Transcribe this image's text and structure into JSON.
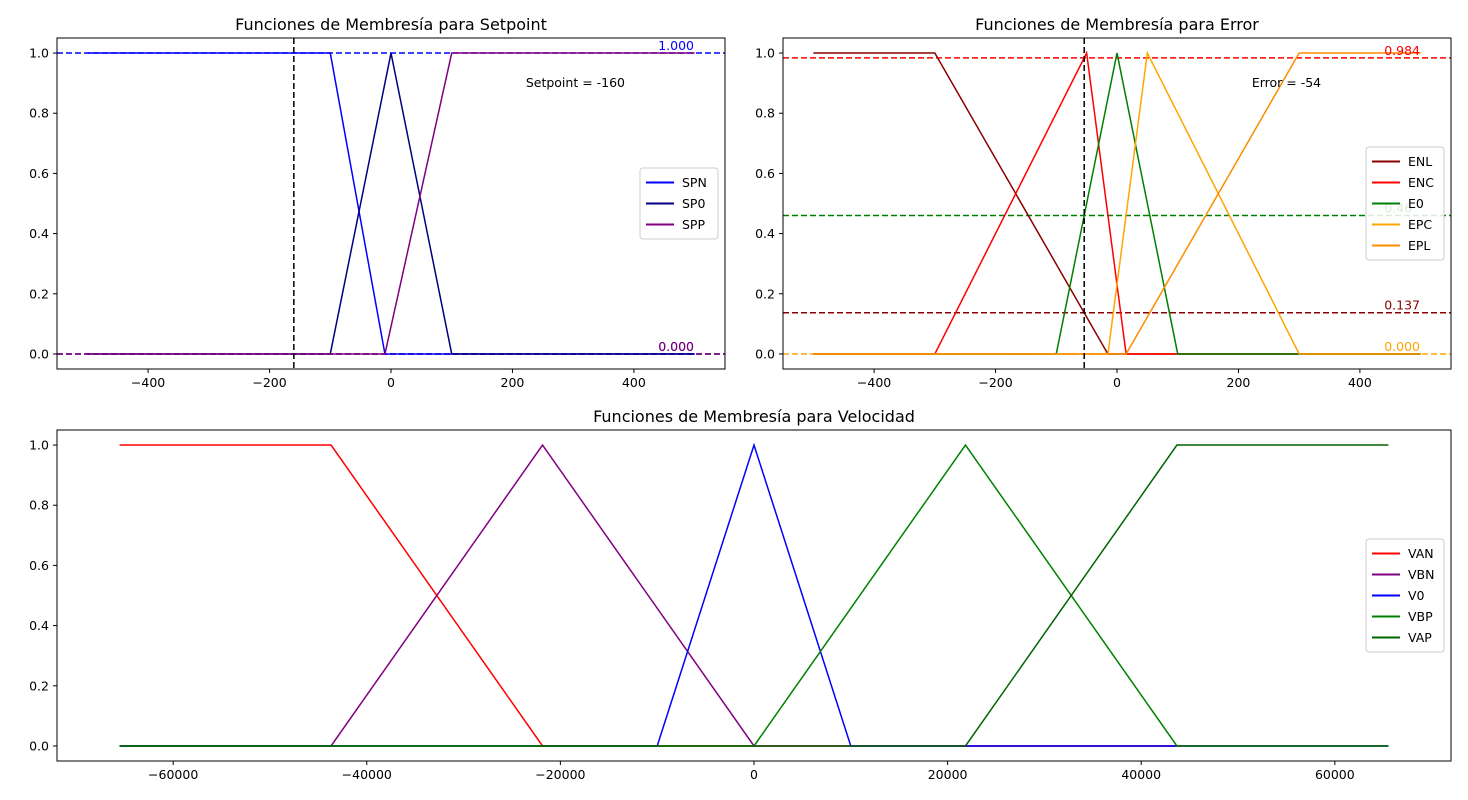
{
  "chart_data": [
    {
      "type": "line",
      "title": "Funciones de Membresía para Setpoint",
      "xlabel": "",
      "ylabel": "",
      "xlim": [
        -550,
        550
      ],
      "ylim": [
        -0.05,
        1.05
      ],
      "xticks": [
        -400,
        -200,
        0,
        200,
        400
      ],
      "xtick_labels": [
        "−400",
        "−200",
        "0",
        "200",
        "400"
      ],
      "yticks": [
        0.0,
        0.2,
        0.4,
        0.6,
        0.8,
        1.0
      ],
      "ytick_labels": [
        "0.0",
        "0.2",
        "0.4",
        "0.6",
        "0.8",
        "1.0"
      ],
      "grid": false,
      "legend_position": "center-right",
      "series": [
        {
          "name": "SPN",
          "color": "#0000ff",
          "x": [
            -500,
            -100,
            -10,
            500
          ],
          "y": [
            1,
            1,
            0,
            0
          ]
        },
        {
          "name": "SP0",
          "color": "#000080",
          "x": [
            -500,
            -100,
            0,
            100,
            500
          ],
          "y": [
            0,
            0,
            1,
            0,
            0
          ]
        },
        {
          "name": "SPP",
          "color": "#800080",
          "x": [
            -500,
            -10,
            100,
            500
          ],
          "y": [
            0,
            0,
            1,
            1
          ]
        }
      ],
      "vline": {
        "x": -160,
        "color": "#000000"
      },
      "hlines": [
        {
          "y": 1.0,
          "color": "#0000ff"
        },
        {
          "y": 0.0,
          "color": "#000080"
        },
        {
          "y": 0.0,
          "color": "#800080"
        }
      ],
      "value_labels": [
        {
          "text": "1.000",
          "x": 440,
          "y": 1.0,
          "color": "#0000ff"
        },
        {
          "text": "0.000",
          "x": 440,
          "y": 0.0,
          "color": "#000080"
        },
        {
          "text": "0.000",
          "x": 440,
          "y": 0.0,
          "color": "#800080"
        }
      ],
      "annotation": {
        "text": "Setpoint = -160",
        "x": 222,
        "y": 0.9
      }
    },
    {
      "type": "line",
      "title": "Funciones de Membresía para Error",
      "xlabel": "",
      "ylabel": "",
      "xlim": [
        -550,
        550
      ],
      "ylim": [
        -0.05,
        1.05
      ],
      "xticks": [
        -400,
        -200,
        0,
        200,
        400
      ],
      "xtick_labels": [
        "−400",
        "−200",
        "0",
        "200",
        "400"
      ],
      "yticks": [
        0.0,
        0.2,
        0.4,
        0.6,
        0.8,
        1.0
      ],
      "ytick_labels": [
        "0.0",
        "0.2",
        "0.4",
        "0.6",
        "0.8",
        "1.0"
      ],
      "grid": false,
      "legend_position": "center-right",
      "series": [
        {
          "name": "ENL",
          "color": "#8b0000",
          "x": [
            -500,
            -300,
            -15,
            500
          ],
          "y": [
            1,
            1,
            0,
            0
          ]
        },
        {
          "name": "ENC",
          "color": "#ff0000",
          "x": [
            -500,
            -300,
            -50,
            15,
            500
          ],
          "y": [
            0,
            0,
            1,
            0,
            0
          ]
        },
        {
          "name": "E0",
          "color": "#008000",
          "x": [
            -500,
            -100,
            0,
            100,
            500
          ],
          "y": [
            0,
            0,
            1,
            0,
            0
          ]
        },
        {
          "name": "EPC",
          "color": "#ffa500",
          "x": [
            -500,
            -15,
            50,
            300,
            500
          ],
          "y": [
            0,
            0,
            1,
            0,
            0
          ]
        },
        {
          "name": "EPL",
          "color": "#ff8c00",
          "x": [
            -500,
            15,
            300,
            500
          ],
          "y": [
            0,
            0,
            1,
            1
          ]
        }
      ],
      "vline": {
        "x": -54,
        "color": "#000000"
      },
      "hlines": [
        {
          "y": 0.984,
          "color": "#ff0000"
        },
        {
          "y": 0.46,
          "color": "#008000"
        },
        {
          "y": 0.137,
          "color": "#8b0000"
        },
        {
          "y": 0.0,
          "color": "#ffa500"
        }
      ],
      "value_labels": [
        {
          "text": "0.984",
          "x": 440,
          "y": 0.984,
          "color": "#ff0000"
        },
        {
          "text": "0.46",
          "x": 440,
          "y": 0.46,
          "color": "#008000"
        },
        {
          "text": "0.137",
          "x": 440,
          "y": 0.137,
          "color": "#8b0000"
        },
        {
          "text": "0.000",
          "x": 440,
          "y": 0.0,
          "color": "#ffa500"
        }
      ],
      "annotation": {
        "text": "Error = -54",
        "x": 222,
        "y": 0.9
      }
    },
    {
      "type": "line",
      "title": "Funciones de Membresía para Velocidad",
      "xlabel": "",
      "ylabel": "",
      "xlim": [
        -72000,
        72000
      ],
      "ylim": [
        -0.05,
        1.05
      ],
      "xticks": [
        -60000,
        -40000,
        -20000,
        0,
        20000,
        40000,
        60000
      ],
      "xtick_labels": [
        "−60000",
        "−40000",
        "−20000",
        "0",
        "20000",
        "40000",
        "60000"
      ],
      "yticks": [
        0.0,
        0.2,
        0.4,
        0.6,
        0.8,
        1.0
      ],
      "ytick_labels": [
        "0.0",
        "0.2",
        "0.4",
        "0.6",
        "0.8",
        "1.0"
      ],
      "grid": false,
      "legend_position": "center-right",
      "series": [
        {
          "name": "VAN",
          "color": "#ff0000",
          "x": [
            -65535,
            -43690,
            -21845,
            65535
          ],
          "y": [
            1,
            1,
            0,
            0
          ]
        },
        {
          "name": "VBN",
          "color": "#800080",
          "x": [
            -65535,
            -43690,
            -21845,
            0,
            65535
          ],
          "y": [
            0,
            0,
            1,
            0,
            0
          ]
        },
        {
          "name": "V0",
          "color": "#0000ff",
          "x": [
            -65535,
            -10000,
            0,
            10000,
            65535
          ],
          "y": [
            0,
            0,
            1,
            0,
            0
          ]
        },
        {
          "name": "VBP",
          "color": "#008000",
          "x": [
            -65535,
            0,
            21845,
            43690,
            65535
          ],
          "y": [
            0,
            0,
            1,
            0,
            0
          ]
        },
        {
          "name": "VAP",
          "color": "#006400",
          "x": [
            -65535,
            21845,
            43690,
            65535
          ],
          "y": [
            0,
            0,
            1,
            1
          ]
        }
      ]
    }
  ]
}
